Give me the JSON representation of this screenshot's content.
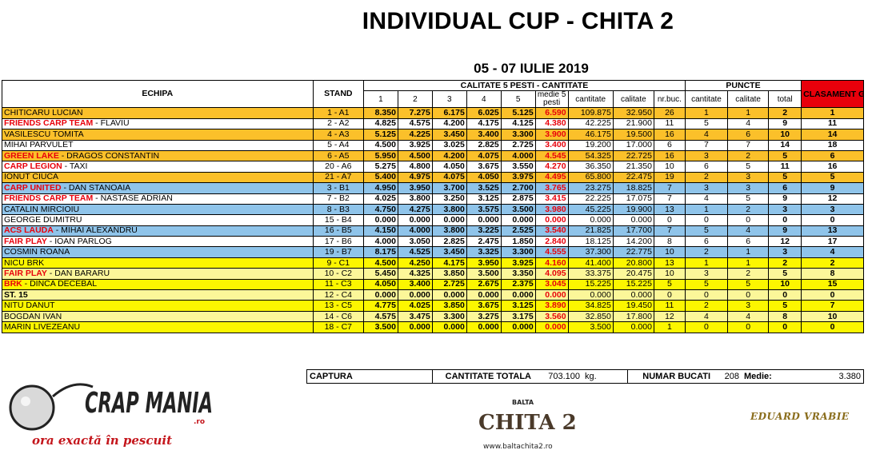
{
  "title": "INDIVIDUAL CUP - CHITA 2",
  "dates": "05 - 07 IULIE 2019",
  "headers": {
    "echipa": "ECHIPA",
    "stand": "STAND",
    "calitate_group": "CALITATE 5 PESTI - CANTITATE",
    "puncte_group": "PUNCTE",
    "clasament": "CLASAMENT GENERAL",
    "cols": [
      "1",
      "2",
      "3",
      "4",
      "5",
      "medie 5 pesti",
      "cantitate",
      "calitate",
      "nr.buc."
    ],
    "puncte_cols": [
      "cantitate",
      "calitate",
      "total"
    ]
  },
  "rows": [
    {
      "club": "",
      "name": "CHITICARU LUCIAN",
      "stand": "1 - A1",
      "f": [
        "8.350",
        "7.275",
        "6.175",
        "6.025",
        "5.125"
      ],
      "medie": "6.590",
      "cantitate": "109.875",
      "calitate": "32.950",
      "nr": "26",
      "p_cant": "1",
      "p_cal": "1",
      "total": "2",
      "clas": "1",
      "bg": "orange",
      "bold": false
    },
    {
      "club": "FRIENDS CARP TEAM",
      "name": " - FLAVIU",
      "stand": "2 - A2",
      "f": [
        "4.825",
        "4.575",
        "4.200",
        "4.175",
        "4.125"
      ],
      "medie": "4.380",
      "cantitate": "42.225",
      "calitate": "21.900",
      "nr": "11",
      "p_cant": "5",
      "p_cal": "4",
      "total": "9",
      "clas": "11",
      "bg": "white",
      "bold": false
    },
    {
      "club": "",
      "name": "VASILESCU TOMITA",
      "stand": "4 - A3",
      "f": [
        "5.125",
        "4.225",
        "3.450",
        "3.400",
        "3.300"
      ],
      "medie": "3.900",
      "cantitate": "46.175",
      "calitate": "19.500",
      "nr": "16",
      "p_cant": "4",
      "p_cal": "6",
      "total": "10",
      "clas": "14",
      "bg": "orange",
      "bold": false
    },
    {
      "club": "",
      "name": "MIHAI PARVULET",
      "stand": "5 - A4",
      "f": [
        "4.500",
        "3.925",
        "3.025",
        "2.825",
        "2.725"
      ],
      "medie": "3.400",
      "cantitate": "19.200",
      "calitate": "17.000",
      "nr": "6",
      "p_cant": "7",
      "p_cal": "7",
      "total": "14",
      "clas": "18",
      "bg": "white",
      "bold": false
    },
    {
      "club": "GREEN LAKE",
      "name": " - DRAGOS CONSTANTIN",
      "stand": "6 - A5",
      "f": [
        "5.950",
        "4.500",
        "4.200",
        "4.075",
        "4.000"
      ],
      "medie": "4.545",
      "cantitate": "54.325",
      "calitate": "22.725",
      "nr": "16",
      "p_cant": "3",
      "p_cal": "2",
      "total": "5",
      "clas": "6",
      "bg": "orange",
      "bold": false
    },
    {
      "club": "CARP LEGION",
      "name": " - TAXI",
      "stand": "20 - A6",
      "f": [
        "5.275",
        "4.800",
        "4.050",
        "3.675",
        "3.550"
      ],
      "medie": "4.270",
      "cantitate": "36.350",
      "calitate": "21.350",
      "nr": "10",
      "p_cant": "6",
      "p_cal": "5",
      "total": "11",
      "clas": "16",
      "bg": "white",
      "bold": false
    },
    {
      "club": "",
      "name": "IONUT CIUCA",
      "stand": "21 - A7",
      "f": [
        "5.400",
        "4.975",
        "4.075",
        "4.050",
        "3.975"
      ],
      "medie": "4.495",
      "cantitate": "65.800",
      "calitate": "22.475",
      "nr": "19",
      "p_cant": "2",
      "p_cal": "3",
      "total": "5",
      "clas": "5",
      "bg": "orange",
      "bold": false
    },
    {
      "club": "CARP UNITED",
      "name": " - DAN STANOAIA",
      "stand": "3 - B1",
      "f": [
        "4.950",
        "3.950",
        "3.700",
        "3.525",
        "2.700"
      ],
      "medie": "3.765",
      "cantitate": "23.275",
      "calitate": "18.825",
      "nr": "7",
      "p_cant": "3",
      "p_cal": "3",
      "total": "6",
      "clas": "9",
      "bg": "blue",
      "bold": false
    },
    {
      "club": "FRIENDS CARP TEAM",
      "name": " - NASTASE ADRIAN",
      "stand": "7 - B2",
      "f": [
        "4.025",
        "3.800",
        "3.250",
        "3.125",
        "2.875"
      ],
      "medie": "3.415",
      "cantitate": "22.225",
      "calitate": "17.075",
      "nr": "7",
      "p_cant": "4",
      "p_cal": "5",
      "total": "9",
      "clas": "12",
      "bg": "white",
      "bold": false
    },
    {
      "club": "",
      "name": "CATALIN MIRCIOIU",
      "stand": "8 - B3",
      "f": [
        "4.750",
        "4.275",
        "3.800",
        "3.575",
        "3.500"
      ],
      "medie": "3.980",
      "cantitate": "45.225",
      "calitate": "19.900",
      "nr": "13",
      "p_cant": "1",
      "p_cal": "2",
      "total": "3",
      "clas": "3",
      "bg": "blue",
      "bold": false
    },
    {
      "club": "",
      "name": "GEORGE DUMITRU",
      "stand": "15 - B4",
      "f": [
        "0.000",
        "0.000",
        "0.000",
        "0.000",
        "0.000"
      ],
      "medie": "0.000",
      "cantitate": "0.000",
      "calitate": "0.000",
      "nr": "0",
      "p_cant": "0",
      "p_cal": "0",
      "total": "0",
      "clas": "0",
      "bg": "white",
      "bold": false
    },
    {
      "club": "ACS LAUDA",
      "name": " - MIHAI ALEXANDRU",
      "stand": "16 - B5",
      "f": [
        "4.150",
        "4.000",
        "3.800",
        "3.225",
        "2.525"
      ],
      "medie": "3.540",
      "cantitate": "21.825",
      "calitate": "17.700",
      "nr": "7",
      "p_cant": "5",
      "p_cal": "4",
      "total": "9",
      "clas": "13",
      "bg": "blue",
      "bold": false
    },
    {
      "club": "FAIR PLAY",
      "name": " - IOAN PARLOG",
      "stand": "17 - B6",
      "f": [
        "4.000",
        "3.050",
        "2.825",
        "2.475",
        "1.850"
      ],
      "medie": "2.840",
      "cantitate": "18.125",
      "calitate": "14.200",
      "nr": "8",
      "p_cant": "6",
      "p_cal": "6",
      "total": "12",
      "clas": "17",
      "bg": "white",
      "bold": false
    },
    {
      "club": "",
      "name": "COSMIN ROANA",
      "stand": "19 - B7",
      "f": [
        "8.175",
        "4.525",
        "3.450",
        "3.325",
        "3.300"
      ],
      "medie": "4.555",
      "cantitate": "37.300",
      "calitate": "22.775",
      "nr": "10",
      "p_cant": "2",
      "p_cal": "1",
      "total": "3",
      "clas": "4",
      "bg": "blue",
      "bold": false
    },
    {
      "club": "",
      "name": "NICU BRK",
      "stand": "9 - C1",
      "f": [
        "4.500",
        "4.250",
        "4.175",
        "3.950",
        "3.925"
      ],
      "medie": "4.160",
      "cantitate": "41.400",
      "calitate": "20.800",
      "nr": "13",
      "p_cant": "1",
      "p_cal": "1",
      "total": "2",
      "clas": "2",
      "bg": "yellow",
      "bold": false
    },
    {
      "club": "FAIR PLAY",
      "name": " - DAN BARARU",
      "stand": "10 - C2",
      "f": [
        "5.450",
        "4.325",
        "3.850",
        "3.500",
        "3.350"
      ],
      "medie": "4.095",
      "cantitate": "33.375",
      "calitate": "20.475",
      "nr": "10",
      "p_cant": "3",
      "p_cal": "2",
      "total": "5",
      "clas": "8",
      "bg": "lyellow",
      "bold": false
    },
    {
      "club": "BRK",
      "name": " - DINCA DECEBAL",
      "stand": "11 - C3",
      "f": [
        "4.050",
        "3.400",
        "2.725",
        "2.675",
        "2.375"
      ],
      "medie": "3.045",
      "cantitate": "15.225",
      "calitate": "15.225",
      "nr": "5",
      "p_cant": "5",
      "p_cal": "5",
      "total": "10",
      "clas": "15",
      "bg": "yellow",
      "bold": false
    },
    {
      "club": "",
      "name": "ST. 15",
      "stand": "12 - C4",
      "f": [
        "0.000",
        "0.000",
        "0.000",
        "0.000",
        "0.000"
      ],
      "medie": "0.000",
      "cantitate": "0.000",
      "calitate": "0.000",
      "nr": "0",
      "p_cant": "0",
      "p_cal": "0",
      "total": "0",
      "clas": "0",
      "bg": "lyellow",
      "bold": true
    },
    {
      "club": "",
      "name": "NITU DANUT",
      "stand": "13 - C5",
      "f": [
        "4.775",
        "4.025",
        "3.850",
        "3.675",
        "3.125"
      ],
      "medie": "3.890",
      "cantitate": "34.825",
      "calitate": "19.450",
      "nr": "11",
      "p_cant": "2",
      "p_cal": "3",
      "total": "5",
      "clas": "7",
      "bg": "yellow",
      "bold": false
    },
    {
      "club": "",
      "name": "BOGDAN IVAN",
      "stand": "14 - C6",
      "f": [
        "4.575",
        "3.475",
        "3.300",
        "3.275",
        "3.175"
      ],
      "medie": "3.560",
      "cantitate": "32.850",
      "calitate": "17.800",
      "nr": "12",
      "p_cant": "4",
      "p_cal": "4",
      "total": "8",
      "clas": "10",
      "bg": "lyellow",
      "bold": false
    },
    {
      "club": "",
      "name": "MARIN LIVEZEANU",
      "stand": "18 - C7",
      "f": [
        "3.500",
        "0.000",
        "0.000",
        "0.000",
        "0.000"
      ],
      "medie": "0.000",
      "cantitate": "3.500",
      "calitate": "0.000",
      "nr": "1",
      "p_cant": "0",
      "p_cal": "0",
      "total": "0",
      "clas": "0",
      "bg": "yellow",
      "bold": false
    }
  ],
  "footer": {
    "captura": "CAPTURA",
    "cantitate_label": "CANTITATE TOTALA",
    "cantitate_value": "703.100",
    "unit": "kg.",
    "numar_label": "NUMAR BUCATI",
    "numar_value": "208",
    "medie_label": "Medie:",
    "medie_value": "3.380"
  },
  "logos": {
    "left_text": "CRAP MANIA",
    "left_small": ".ro",
    "left_tagline": "ora exactă în pescuit",
    "mid_small": "BALTA",
    "mid_text": "CHITA 2",
    "mid_url": "www.baltachita2.ro",
    "signature": "EDUARD VRABIE"
  },
  "colors": {
    "orange": "#fbc02a",
    "blue": "#8fc4ea",
    "yellow": "#fcf600",
    "light_yellow": "#fcf799",
    "accent_red": "#e8000b"
  }
}
